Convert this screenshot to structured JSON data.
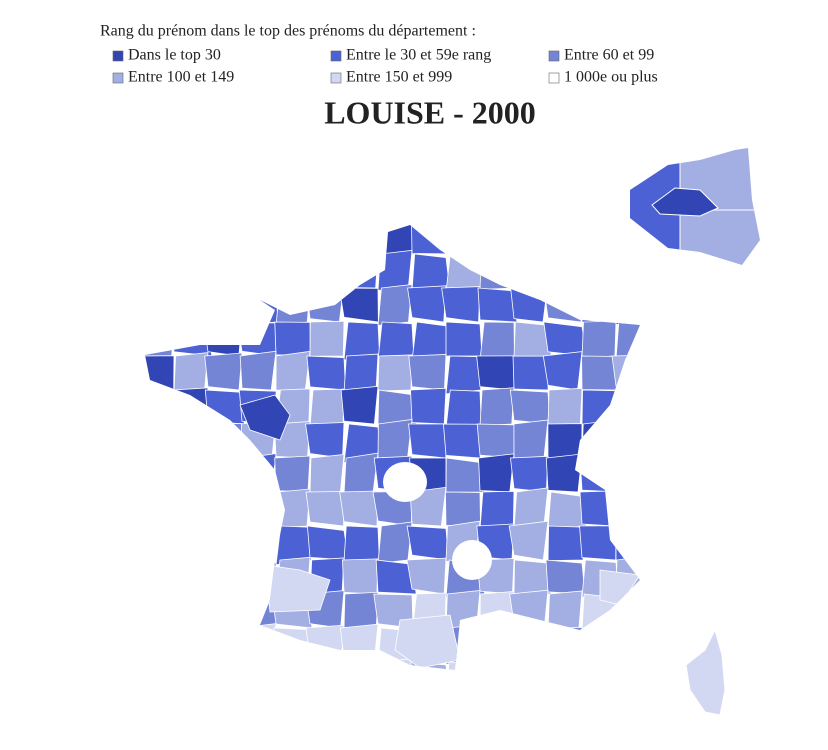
{
  "title": "LOUISE - 2000",
  "legend": {
    "title": "Rang du prénom dans le top des prénoms du département :",
    "items": [
      {
        "label": "Dans le top 30",
        "color": "#3145b5"
      },
      {
        "label": "Entre le 30 et 59e rang",
        "color": "#4c62d4"
      },
      {
        "label": "Entre 60 et 99",
        "color": "#7585d6"
      },
      {
        "label": "Entre 100 et 149",
        "color": "#a3afe3"
      },
      {
        "label": "Entre 150 et 999",
        "color": "#d3d8f2"
      },
      {
        "label": "1 000e ou plus",
        "color": "#ffffff"
      }
    ]
  }
}
